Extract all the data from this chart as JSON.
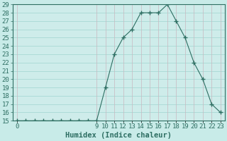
{
  "xlabel": "Humidex (Indice chaleur)",
  "ylabel": "",
  "x": [
    0,
    1,
    2,
    3,
    4,
    5,
    6,
    7,
    8,
    9,
    10,
    11,
    12,
    13,
    14,
    15,
    16,
    17,
    18,
    19,
    20,
    21,
    22,
    23
  ],
  "y": [
    15,
    15,
    15,
    15,
    15,
    15,
    15,
    15,
    15,
    15,
    19,
    23,
    25,
    26,
    28,
    28,
    28,
    29,
    27,
    25,
    22,
    20,
    17,
    16
  ],
  "xlim": [
    -0.5,
    23.5
  ],
  "ylim": [
    15,
    29
  ],
  "yticks": [
    15,
    16,
    17,
    18,
    19,
    20,
    21,
    22,
    23,
    24,
    25,
    26,
    27,
    28,
    29
  ],
  "xticks": [
    0,
    9,
    10,
    11,
    12,
    13,
    14,
    15,
    16,
    17,
    18,
    19,
    20,
    21,
    22,
    23
  ],
  "line_color": "#2d6e62",
  "marker_color": "#2d6e62",
  "bg_color": "#c8ebe8",
  "grid_color_h": "#a0d4cf",
  "grid_color_v": "#c9b8c0",
  "plot_bg": "#ceecea",
  "axis_color": "#2d6e62",
  "tick_color": "#2d6e62",
  "label_fontsize": 6.5,
  "xlabel_fontsize": 7.5
}
